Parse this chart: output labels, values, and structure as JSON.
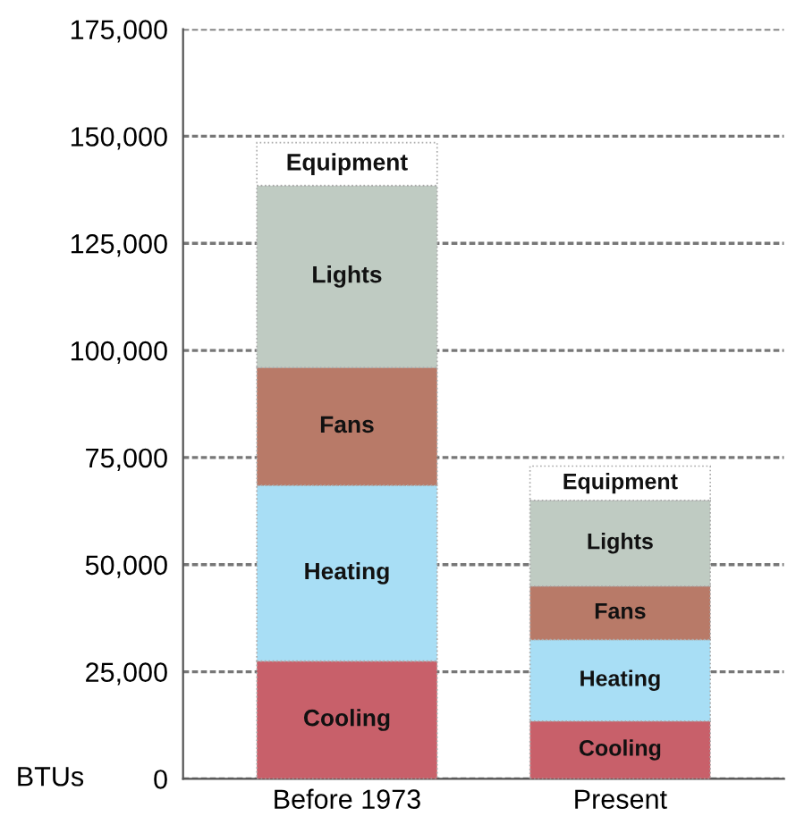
{
  "chart_data": {
    "type": "bar",
    "stacked": true,
    "ylabel": "BTUs",
    "categories": [
      "Before 1973",
      "Present"
    ],
    "series": [
      {
        "name": "Cooling",
        "color": "#c8606a",
        "values": [
          27500,
          13500
        ]
      },
      {
        "name": "Heating",
        "color": "#a8def5",
        "values": [
          41000,
          19000
        ]
      },
      {
        "name": "Fans",
        "color": "#b87a68",
        "values": [
          27500,
          12500
        ]
      },
      {
        "name": "Lights",
        "color": "#bfcbc2",
        "values": [
          42500,
          20000
        ]
      },
      {
        "name": "Equipment",
        "color": "#ffffff",
        "values": [
          10000,
          8000
        ]
      }
    ],
    "ylim": [
      0,
      175000
    ],
    "yticks": [
      {
        "value": 0,
        "label": "0"
      },
      {
        "value": 25000,
        "label": "25,000"
      },
      {
        "value": 50000,
        "label": "50,000"
      },
      {
        "value": 75000,
        "label": "75,000"
      },
      {
        "value": 100000,
        "label": "100,000"
      },
      {
        "value": 125000,
        "label": "125,000"
      },
      {
        "value": 150000,
        "label": "150,000"
      },
      {
        "value": 175000,
        "label": "175,000"
      }
    ],
    "grid": "y",
    "legend": false
  }
}
